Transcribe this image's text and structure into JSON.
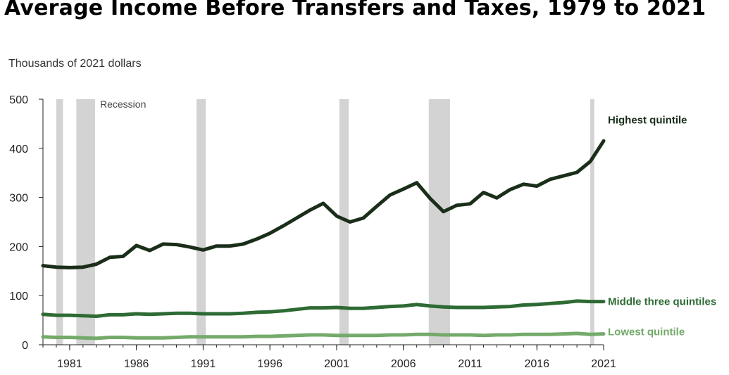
{
  "chart_data": {
    "type": "line",
    "title": "Average Income Before Transfers and Taxes, 1979 to 2021",
    "ylabel": "Thousands of 2021 dollars",
    "xlabel": "",
    "xlim": [
      1979,
      2021
    ],
    "ylim": [
      0,
      500
    ],
    "grid": false,
    "y_ticks": [
      "0",
      "100",
      "200",
      "300",
      "400",
      "500"
    ],
    "x_ticks": [
      "1981",
      "1986",
      "1991",
      "1996",
      "2001",
      "2006",
      "2011",
      "2016",
      "2021"
    ],
    "recession_label": "Recession",
    "recessions": [
      [
        1980.0,
        1980.5
      ],
      [
        1981.5,
        1982.9
      ],
      [
        1990.5,
        1991.2
      ],
      [
        2001.2,
        2001.9
      ],
      [
        2007.9,
        2009.5
      ],
      [
        2020.0,
        2020.3
      ]
    ],
    "x": [
      1979,
      1980,
      1981,
      1982,
      1983,
      1984,
      1985,
      1986,
      1987,
      1988,
      1989,
      1990,
      1991,
      1992,
      1993,
      1994,
      1995,
      1996,
      1997,
      1998,
      1999,
      2000,
      2001,
      2002,
      2003,
      2004,
      2005,
      2006,
      2007,
      2008,
      2009,
      2010,
      2011,
      2012,
      2013,
      2014,
      2015,
      2016,
      2017,
      2018,
      2019,
      2020,
      2021
    ],
    "series": [
      {
        "name": "Highest quintile",
        "color": "#1a2e1a",
        "values": [
          161,
          158,
          157,
          158,
          164,
          178,
          180,
          202,
          192,
          205,
          204,
          199,
          193,
          201,
          201,
          205,
          215,
          227,
          242,
          258,
          274,
          288,
          262,
          250,
          258,
          282,
          305,
          317,
          330,
          298,
          271,
          284,
          287,
          310,
          299,
          316,
          327,
          323,
          337,
          344,
          351,
          373,
          415
        ]
      },
      {
        "name": "Middle three quintiles",
        "color": "#2e6b34",
        "values": [
          62,
          60,
          60,
          59,
          58,
          61,
          61,
          63,
          62,
          63,
          64,
          64,
          63,
          63,
          63,
          64,
          66,
          67,
          69,
          72,
          75,
          75,
          76,
          74,
          74,
          76,
          78,
          79,
          82,
          79,
          77,
          76,
          76,
          76,
          77,
          78,
          81,
          82,
          84,
          86,
          89,
          88,
          88
        ]
      },
      {
        "name": "Lowest quintile",
        "color": "#74aa6a",
        "values": [
          16,
          15,
          15,
          14,
          13,
          15,
          15,
          14,
          14,
          14,
          15,
          16,
          16,
          16,
          16,
          16,
          17,
          17,
          18,
          19,
          20,
          20,
          19,
          19,
          19,
          19,
          20,
          20,
          21,
          21,
          20,
          20,
          20,
          19,
          20,
          20,
          21,
          21,
          21,
          22,
          23,
          21,
          22
        ]
      }
    ]
  }
}
